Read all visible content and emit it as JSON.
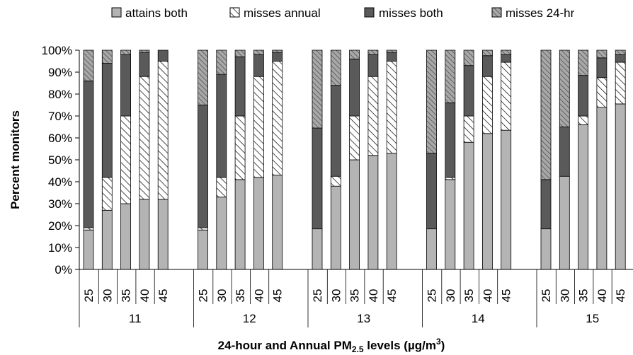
{
  "chart_data": {
    "type": "bar",
    "stacked": true,
    "ylabel": "Percent monitors",
    "xlabel": {
      "prefix": "24-hour and Annual PM",
      "sub": "2.5",
      "middle": " levels (µg/m",
      "sup": "3",
      "suffix": ")"
    },
    "ylim": [
      0,
      100
    ],
    "y_ticks": [
      "0%",
      "10%",
      "20%",
      "30%",
      "40%",
      "50%",
      "60%",
      "70%",
      "80%",
      "90%",
      "100%"
    ],
    "grid": false,
    "legend_position": "top",
    "legend": [
      {
        "name": "attains both",
        "pattern": "solid-light",
        "color": "#b4b4b4"
      },
      {
        "name": "misses annual",
        "pattern": "diagonal-white",
        "color": "#ffffff"
      },
      {
        "name": "misses both",
        "pattern": "solid-dark",
        "color": "#5a5a5a"
      },
      {
        "name": "misses 24-hr",
        "pattern": "diagonal-gray",
        "color": "#9a9a9a"
      }
    ],
    "groups": [
      {
        "label": "11",
        "categories": [
          "25",
          "30",
          "35",
          "40",
          "45"
        ],
        "attains_both": [
          18,
          27,
          30,
          32,
          32
        ],
        "misses_annual": [
          1,
          15,
          40,
          56,
          63
        ],
        "misses_both": [
          67,
          52,
          28,
          11,
          5
        ],
        "misses_24hr": [
          14,
          6,
          2,
          1,
          0
        ]
      },
      {
        "label": "12",
        "categories": [
          "25",
          "30",
          "35",
          "40",
          "45"
        ],
        "attains_both": [
          18,
          33,
          41,
          42,
          43
        ],
        "misses_annual": [
          1,
          9,
          29,
          46,
          52
        ],
        "misses_both": [
          56,
          47,
          27,
          10,
          4
        ],
        "misses_24hr": [
          25,
          11,
          3,
          2,
          1
        ]
      },
      {
        "label": "13",
        "categories": [
          "25",
          "30",
          "35",
          "40",
          "45"
        ],
        "attains_both": [
          18.5,
          38,
          50,
          52,
          53
        ],
        "misses_annual": [
          0,
          4.5,
          20,
          36,
          42
        ],
        "misses_both": [
          46,
          41.5,
          26,
          10,
          4
        ],
        "misses_24hr": [
          35.5,
          16,
          4,
          2,
          1
        ]
      },
      {
        "label": "14",
        "categories": [
          "25",
          "30",
          "35",
          "40",
          "45"
        ],
        "attains_both": [
          18.5,
          41,
          58,
          62,
          63.5
        ],
        "misses_annual": [
          0,
          1,
          12,
          26,
          31
        ],
        "misses_both": [
          34.5,
          34,
          23,
          9.5,
          3.5
        ],
        "misses_24hr": [
          47,
          24,
          7,
          2.5,
          2
        ]
      },
      {
        "label": "15",
        "categories": [
          "25",
          "30",
          "35",
          "40",
          "45"
        ],
        "attains_both": [
          18.5,
          42.5,
          66,
          74,
          75.5
        ],
        "misses_annual": [
          0,
          0,
          4,
          13.5,
          19
        ],
        "misses_both": [
          22.5,
          22.5,
          18.5,
          9,
          3.5
        ],
        "misses_24hr": [
          59,
          35,
          11.5,
          3.5,
          2
        ]
      }
    ]
  }
}
